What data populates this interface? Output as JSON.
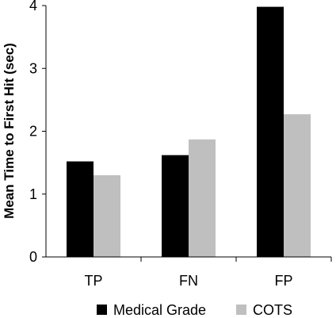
{
  "chart_data": {
    "type": "bar",
    "categories": [
      "TP",
      "FN",
      "FP"
    ],
    "series": [
      {
        "name": "Medical Grade",
        "values": [
          1.52,
          1.62,
          3.98
        ],
        "color": "#000000"
      },
      {
        "name": "COTS",
        "values": [
          1.3,
          1.87,
          2.27
        ],
        "color": "#bfbfbf"
      }
    ],
    "title": "",
    "xlabel": "",
    "ylabel": "Mean Time to First Hit  (sec)",
    "ylim": [
      0,
      4
    ],
    "yticks": [
      0,
      1,
      2,
      3,
      4
    ],
    "grid": false,
    "legend_position": "bottom"
  }
}
